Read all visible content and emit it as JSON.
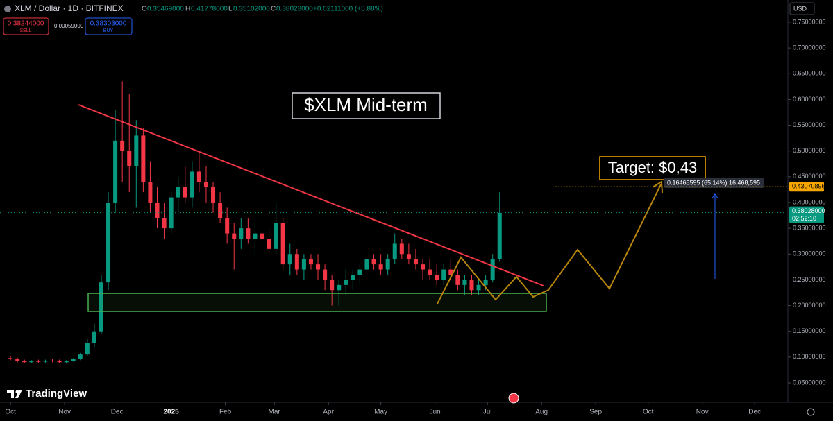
{
  "header": {
    "symbol": "XLM / Dollar · 1D · BITFINEX",
    "o_label": "O",
    "o": "0.35469000",
    "h_label": "H",
    "h": "0.41778000",
    "l_label": "L",
    "l": "0.35102000",
    "c_label": "C",
    "c": "0.38028000",
    "change": "+0.02111000 (+5.88%)",
    "sell_price": "0.38244000",
    "sell": "SELL",
    "spread": "0.00059000",
    "buy_price": "0.38303000",
    "buy": "BUY",
    "currency": "USD",
    "brand": "TradingView"
  },
  "chart_data": {
    "type": "candlestick",
    "annotations": {
      "title": "$XLM Mid-term",
      "target": "Target: $0,43",
      "measure": "0.16468595 (65.14%) 16,468,595"
    },
    "x": [
      0,
      4,
      8,
      12,
      16,
      20,
      24,
      28,
      32,
      36,
      40,
      44,
      48,
      52,
      56,
      60,
      64,
      68,
      72,
      76,
      80,
      84,
      88,
      92,
      96,
      100,
      104,
      108,
      112,
      116,
      120,
      124,
      128,
      132,
      136,
      140,
      144,
      148,
      152,
      156,
      160,
      164,
      168,
      172,
      176,
      180,
      184,
      188,
      192,
      196,
      200,
      204,
      208,
      212,
      216,
      220,
      224,
      228,
      232,
      236,
      240,
      244,
      248,
      252,
      256,
      260,
      264,
      268,
      272,
      276,
      280
    ],
    "open": [
      0.098,
      0.096,
      0.092,
      0.09,
      0.092,
      0.091,
      0.093,
      0.092,
      0.09,
      0.093,
      0.096,
      0.105,
      0.128,
      0.15,
      0.245,
      0.4,
      0.52,
      0.5,
      0.47,
      0.53,
      0.44,
      0.4,
      0.37,
      0.35,
      0.41,
      0.43,
      0.41,
      0.46,
      0.44,
      0.43,
      0.4,
      0.37,
      0.34,
      0.33,
      0.35,
      0.33,
      0.34,
      0.33,
      0.31,
      0.36,
      0.28,
      0.3,
      0.27,
      0.29,
      0.28,
      0.27,
      0.25,
      0.23,
      0.24,
      0.25,
      0.26,
      0.27,
      0.29,
      0.28,
      0.27,
      0.29,
      0.32,
      0.3,
      0.29,
      0.28,
      0.27,
      0.26,
      0.25,
      0.27,
      0.26,
      0.24,
      0.25,
      0.23,
      0.24,
      0.25,
      0.29
    ],
    "high": [
      0.102,
      0.099,
      0.095,
      0.094,
      0.095,
      0.095,
      0.096,
      0.095,
      0.094,
      0.098,
      0.108,
      0.135,
      0.165,
      0.26,
      0.42,
      0.58,
      0.635,
      0.61,
      0.56,
      0.545,
      0.48,
      0.43,
      0.4,
      0.42,
      0.45,
      0.47,
      0.48,
      0.5,
      0.47,
      0.44,
      0.42,
      0.39,
      0.36,
      0.37,
      0.37,
      0.36,
      0.37,
      0.35,
      0.4,
      0.37,
      0.32,
      0.31,
      0.3,
      0.3,
      0.3,
      0.28,
      0.26,
      0.25,
      0.27,
      0.27,
      0.28,
      0.3,
      0.3,
      0.3,
      0.3,
      0.34,
      0.33,
      0.32,
      0.31,
      0.29,
      0.29,
      0.28,
      0.28,
      0.29,
      0.27,
      0.26,
      0.26,
      0.25,
      0.26,
      0.3,
      0.42
    ],
    "low": [
      0.094,
      0.09,
      0.088,
      0.088,
      0.089,
      0.089,
      0.09,
      0.089,
      0.088,
      0.091,
      0.094,
      0.102,
      0.12,
      0.145,
      0.23,
      0.38,
      0.44,
      0.42,
      0.39,
      0.42,
      0.38,
      0.35,
      0.33,
      0.34,
      0.38,
      0.4,
      0.39,
      0.42,
      0.4,
      0.38,
      0.36,
      0.32,
      0.27,
      0.31,
      0.32,
      0.3,
      0.32,
      0.3,
      0.3,
      0.27,
      0.26,
      0.26,
      0.25,
      0.27,
      0.25,
      0.23,
      0.2,
      0.2,
      0.22,
      0.23,
      0.24,
      0.26,
      0.27,
      0.26,
      0.26,
      0.28,
      0.29,
      0.28,
      0.27,
      0.25,
      0.25,
      0.24,
      0.24,
      0.25,
      0.23,
      0.22,
      0.22,
      0.22,
      0.23,
      0.245,
      0.285
    ],
    "close": [
      0.096,
      0.092,
      0.09,
      0.092,
      0.091,
      0.093,
      0.092,
      0.09,
      0.093,
      0.096,
      0.105,
      0.128,
      0.15,
      0.245,
      0.4,
      0.52,
      0.5,
      0.47,
      0.53,
      0.44,
      0.4,
      0.37,
      0.35,
      0.41,
      0.43,
      0.41,
      0.46,
      0.44,
      0.43,
      0.4,
      0.37,
      0.34,
      0.33,
      0.35,
      0.33,
      0.34,
      0.33,
      0.31,
      0.36,
      0.28,
      0.3,
      0.27,
      0.29,
      0.28,
      0.27,
      0.25,
      0.23,
      0.24,
      0.25,
      0.26,
      0.27,
      0.29,
      0.28,
      0.27,
      0.29,
      0.32,
      0.3,
      0.29,
      0.28,
      0.27,
      0.26,
      0.25,
      0.27,
      0.26,
      0.24,
      0.25,
      0.23,
      0.24,
      0.25,
      0.29,
      0.38
    ],
    "up_color": "#089981",
    "down_color": "#f23645",
    "xlim": [
      -6,
      445
    ],
    "xticks": [
      {
        "value": 0,
        "label": "Oct"
      },
      {
        "value": 31,
        "label": "Nov"
      },
      {
        "value": 61,
        "label": "Dec"
      },
      {
        "value": 92,
        "label": "2025"
      },
      {
        "value": 123,
        "label": "Feb"
      },
      {
        "value": 151,
        "label": "Mar"
      },
      {
        "value": 182,
        "label": "Apr"
      },
      {
        "value": 212,
        "label": "May"
      },
      {
        "value": 243,
        "label": "Jun"
      },
      {
        "value": 273,
        "label": "Jul"
      },
      {
        "value": 304,
        "label": "Aug"
      },
      {
        "value": 335,
        "label": "Sep"
      },
      {
        "value": 365,
        "label": "Oct"
      },
      {
        "value": 396,
        "label": "Nov"
      },
      {
        "value": 426,
        "label": "Dec"
      }
    ],
    "ylim": [
      0.05,
      0.75
    ],
    "yticks": [
      {
        "value": 0.05,
        "label": "0.05000000"
      },
      {
        "value": 0.1,
        "label": "0.10000000"
      },
      {
        "value": 0.15,
        "label": "0.15000000"
      },
      {
        "value": 0.2,
        "label": "0.20000000"
      },
      {
        "value": 0.25,
        "label": "0.25000000"
      },
      {
        "value": 0.3,
        "label": "0.30000000"
      },
      {
        "value": 0.35,
        "label": "0.35000000"
      },
      {
        "value": 0.4,
        "label": "0.40000000"
      },
      {
        "value": 0.45,
        "label": "0.45000000"
      },
      {
        "value": 0.5,
        "label": "0.50000000"
      },
      {
        "value": 0.55,
        "label": "0.55000000"
      },
      {
        "value": 0.6,
        "label": "0.60000000"
      },
      {
        "value": 0.65,
        "label": "0.65000000"
      },
      {
        "value": 0.7,
        "label": "0.70000000"
      },
      {
        "value": 0.75,
        "label": "0.75000000"
      }
    ],
    "last_price": {
      "value": 0.38028,
      "label": "0.38028000"
    },
    "countdown": "02:52:10",
    "target_level": 0.43070896
  }
}
